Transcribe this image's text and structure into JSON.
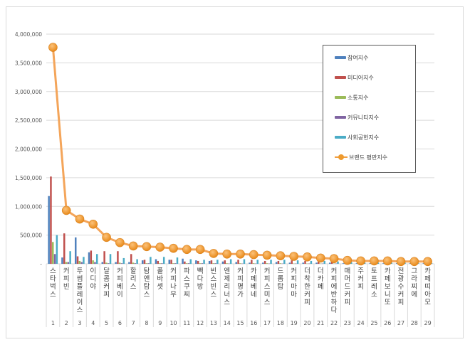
{
  "chart_data": {
    "type": "bar+line",
    "title": "",
    "xlabel": "",
    "ylabel": "",
    "ylim": [
      0,
      4000000
    ],
    "y_ticks": [
      "-",
      "500,000",
      "1,000,000",
      "1,500,000",
      "2,000,000",
      "2,500,000",
      "3,000,000",
      "3,500,000",
      "4,000,000"
    ],
    "grid": true,
    "legend_position": "right-inside",
    "categories": [
      "스타벅스",
      "커피빈",
      "투썸플레이스",
      "이디야",
      "달콤커피",
      "커피베이",
      "할리스",
      "탐앤탐스",
      "폴바셋",
      "커피나무",
      "파스쿠찌",
      "빽다방",
      "빈스빈스",
      "엔제리너스",
      "커피명가",
      "카페베네",
      "커피스미스",
      "드롭탑",
      "커피마마",
      "더착한커피",
      "더카페",
      "커피에반하다",
      "매머드커피",
      "주커피",
      "토프레소",
      "카페보니또",
      "전광수커피",
      "그라찌에",
      "카페띠아모"
    ],
    "ranks": [
      "1",
      "2",
      "3",
      "4",
      "5",
      "6",
      "7",
      "8",
      "9",
      "10",
      "11",
      "12",
      "13",
      "14",
      "15",
      "16",
      "17",
      "18",
      "19",
      "20",
      "21",
      "22",
      "23",
      "24",
      "25",
      "26",
      "27",
      "28",
      "29"
    ],
    "series": [
      {
        "name": "참여지수",
        "type": "bar",
        "color": "#4f81bd",
        "values": [
          1180000,
          110000,
          460000,
          200000,
          30000,
          30000,
          30000,
          60000,
          80000,
          70000,
          90000,
          60000,
          50000,
          40000,
          30000,
          20000,
          20000,
          30000,
          20000,
          20000,
          20000,
          20000,
          10000,
          10000,
          10000,
          10000,
          10000,
          10000,
          10000
        ]
      },
      {
        "name": "미디어지수",
        "type": "bar",
        "color": "#c0504d",
        "values": [
          1520000,
          530000,
          130000,
          230000,
          220000,
          220000,
          170000,
          70000,
          50000,
          70000,
          40000,
          50000,
          60000,
          60000,
          70000,
          70000,
          50000,
          50000,
          60000,
          50000,
          40000,
          30000,
          20000,
          20000,
          20000,
          20000,
          20000,
          10000,
          10000
        ]
      },
      {
        "name": "소통지수",
        "type": "bar",
        "color": "#9bbb59",
        "values": [
          380000,
          30000,
          50000,
          60000,
          20000,
          20000,
          20000,
          10000,
          10000,
          10000,
          10000,
          10000,
          10000,
          10000,
          10000,
          10000,
          10000,
          10000,
          5000,
          5000,
          5000,
          5000,
          5000,
          5000,
          5000,
          5000,
          5000,
          5000,
          5000
        ]
      },
      {
        "name": "커뮤니티지수",
        "type": "bar",
        "color": "#8064a2",
        "values": [
          170000,
          30000,
          30000,
          30000,
          10000,
          10000,
          10000,
          10000,
          10000,
          10000,
          10000,
          10000,
          10000,
          5000,
          5000,
          5000,
          5000,
          5000,
          5000,
          5000,
          5000,
          5000,
          5000,
          5000,
          5000,
          5000,
          5000,
          5000,
          5000
        ]
      },
      {
        "name": "사회공헌지수",
        "type": "bar",
        "color": "#4bacc6",
        "values": [
          500000,
          220000,
          120000,
          170000,
          170000,
          100000,
          80000,
          120000,
          120000,
          110000,
          80000,
          70000,
          70000,
          80000,
          80000,
          70000,
          70000,
          70000,
          60000,
          50000,
          50000,
          40000,
          30000,
          20000,
          20000,
          20000,
          20000,
          10000,
          10000
        ]
      },
      {
        "name": "브랜드 평판지수",
        "type": "line",
        "color": "#f79646",
        "values": [
          3770000,
          930000,
          780000,
          690000,
          460000,
          370000,
          310000,
          300000,
          290000,
          270000,
          250000,
          250000,
          180000,
          170000,
          170000,
          160000,
          150000,
          140000,
          130000,
          120000,
          100000,
          90000,
          60000,
          50000,
          50000,
          50000,
          40000,
          40000,
          40000
        ]
      }
    ]
  },
  "legend": {
    "items": [
      "참여지수",
      "미디어지수",
      "소통지수",
      "커뮤니티지수",
      "사회공헌지수",
      "브랜드 평판지수"
    ]
  }
}
